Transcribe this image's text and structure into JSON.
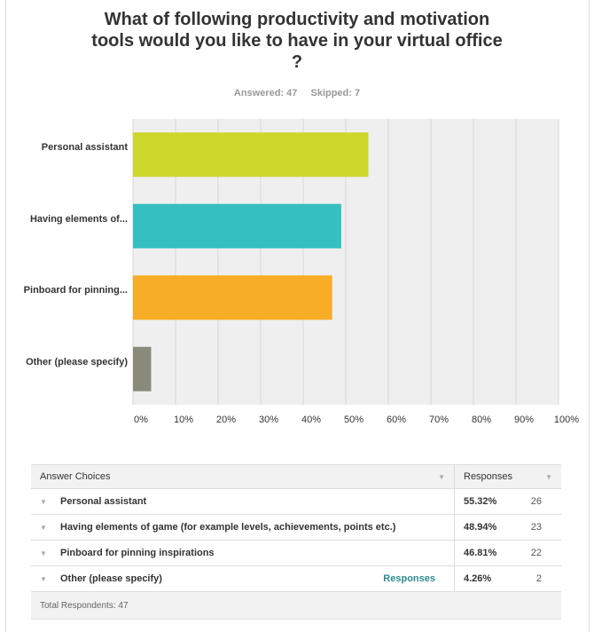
{
  "question": {
    "title": "What of following productivity and motivation tools would you like to have in your virtual office ?",
    "answered": "Answered: 47",
    "skipped": "Skipped: 7"
  },
  "chart_data": {
    "type": "bar",
    "orientation": "horizontal",
    "title": "What of following productivity and motivation tools would you like to have in your virtual office ?",
    "categories": [
      "Personal assistant",
      "Having elements of...",
      "Pinboard for pinning...",
      "Other (please specify)"
    ],
    "values": [
      55.32,
      48.94,
      46.81,
      4.26
    ],
    "colors": [
      "#cdd62a",
      "#35bfc1",
      "#f7ad25",
      "#898a79"
    ],
    "xlim": [
      0,
      100
    ],
    "xticks": [
      "0%",
      "10%",
      "20%",
      "30%",
      "40%",
      "50%",
      "60%",
      "70%",
      "80%",
      "90%",
      "100%"
    ],
    "grid": true,
    "xlabel": "",
    "ylabel": ""
  },
  "table": {
    "header_choice": "Answer Choices",
    "header_responses": "Responses",
    "rows": [
      {
        "label": "Personal assistant",
        "pct": "55.32%",
        "count": "26"
      },
      {
        "label": "Having elements of game (for example levels, achievements, points etc.)",
        "pct": "48.94%",
        "count": "23"
      },
      {
        "label": "Pinboard for pinning inspirations",
        "pct": "46.81%",
        "count": "22"
      },
      {
        "label": "Other (please specify)",
        "pct": "4.26%",
        "count": "2",
        "link": "Responses"
      }
    ],
    "total": "Total Respondents: 47"
  }
}
